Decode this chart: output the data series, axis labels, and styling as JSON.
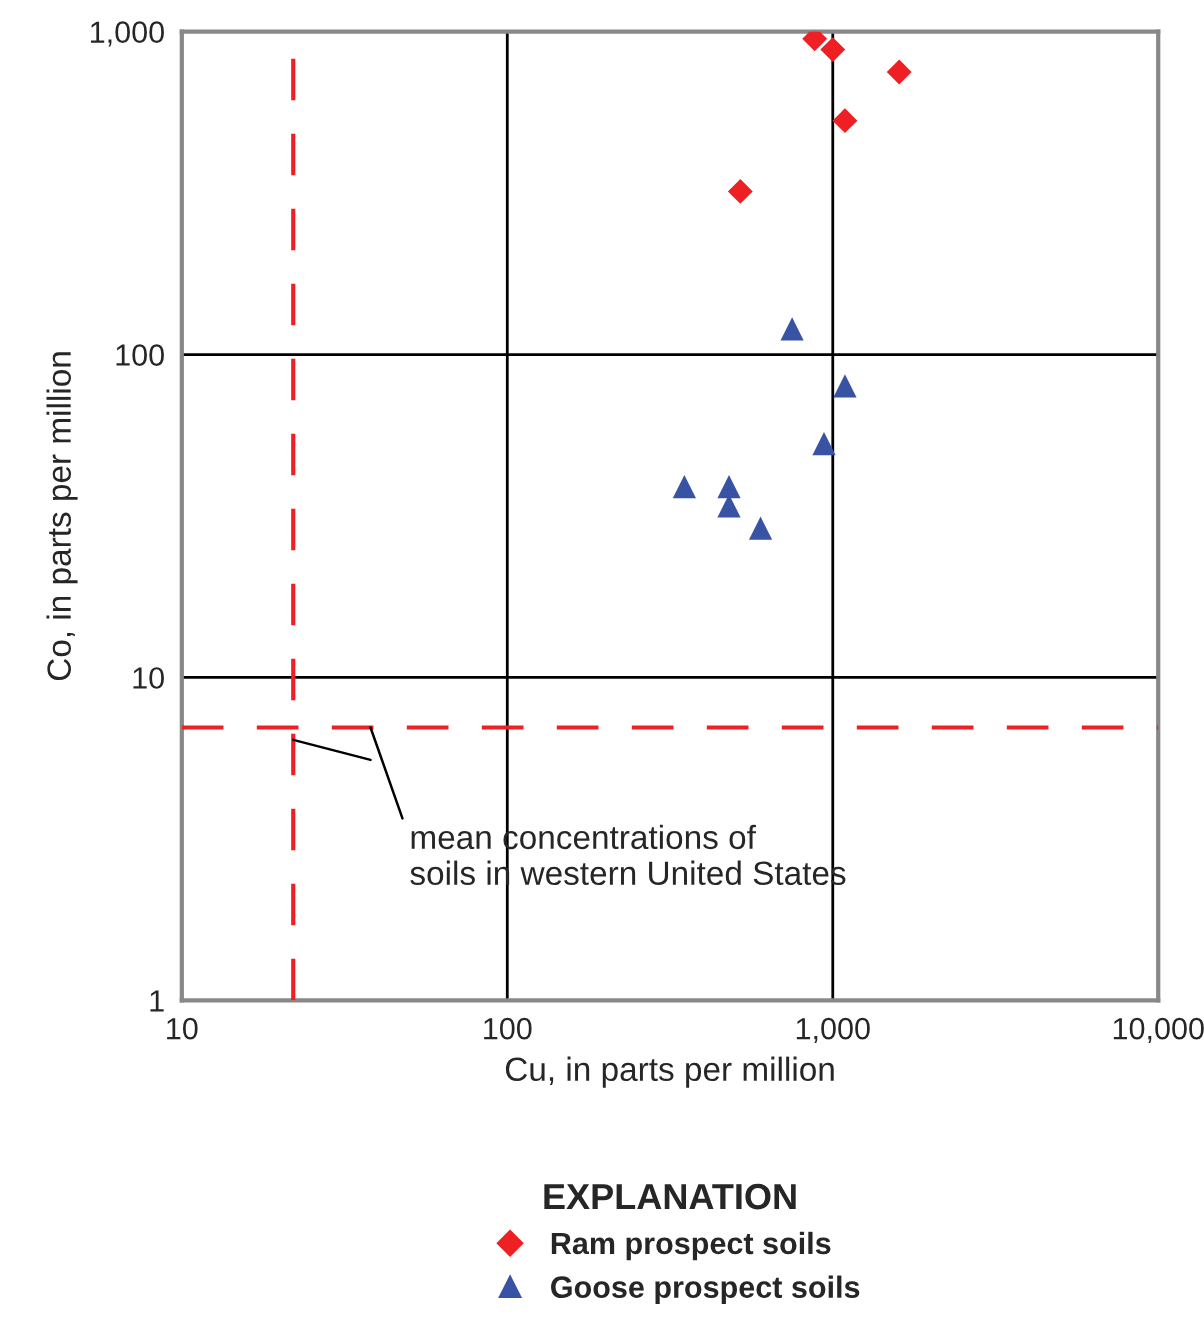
{
  "chart_data": {
    "type": "scatter",
    "xlabel": "Cu, in parts per million",
    "ylabel": "Co, in parts per million",
    "legend_title": "EXPLANATION",
    "log": "xy",
    "grid": true,
    "legend": "bottom",
    "xlim": [
      10,
      10000
    ],
    "xticks": [
      10,
      100,
      {
        "value": 1000,
        "label": "1,000"
      },
      {
        "value": 10000,
        "label": "10,000"
      }
    ],
    "ylim": [
      1,
      1000
    ],
    "yticks": [
      1,
      10,
      100,
      {
        "value": 1000,
        "label": "1,000"
      }
    ],
    "series": [
      {
        "name": "Ram prospect soils",
        "color": "#ee2024",
        "marker": "diamond",
        "x": [
          880,
          1000,
          1600,
          1090,
          520
        ],
        "values": [
          950,
          880,
          750,
          530,
          320
        ]
      },
      {
        "name": "Goose prospect soils",
        "color": "#3953a4",
        "marker": "triangle",
        "x": [
          750,
          1090,
          940,
          350,
          480,
          480,
          600
        ],
        "values": [
          120,
          80,
          53,
          39,
          39,
          34,
          29
        ]
      }
    ],
    "ref_lines": [
      {
        "axis": "x",
        "value": 22,
        "color": "#ee2024",
        "line_style": "dashed"
      },
      {
        "axis": "y",
        "value": 7,
        "color": "#ee2024",
        "line_style": "dashed"
      }
    ],
    "annotations": [
      {
        "text": "mean concentrations of\nsoils in western United States",
        "x": 38,
        "y": 7
      }
    ]
  }
}
